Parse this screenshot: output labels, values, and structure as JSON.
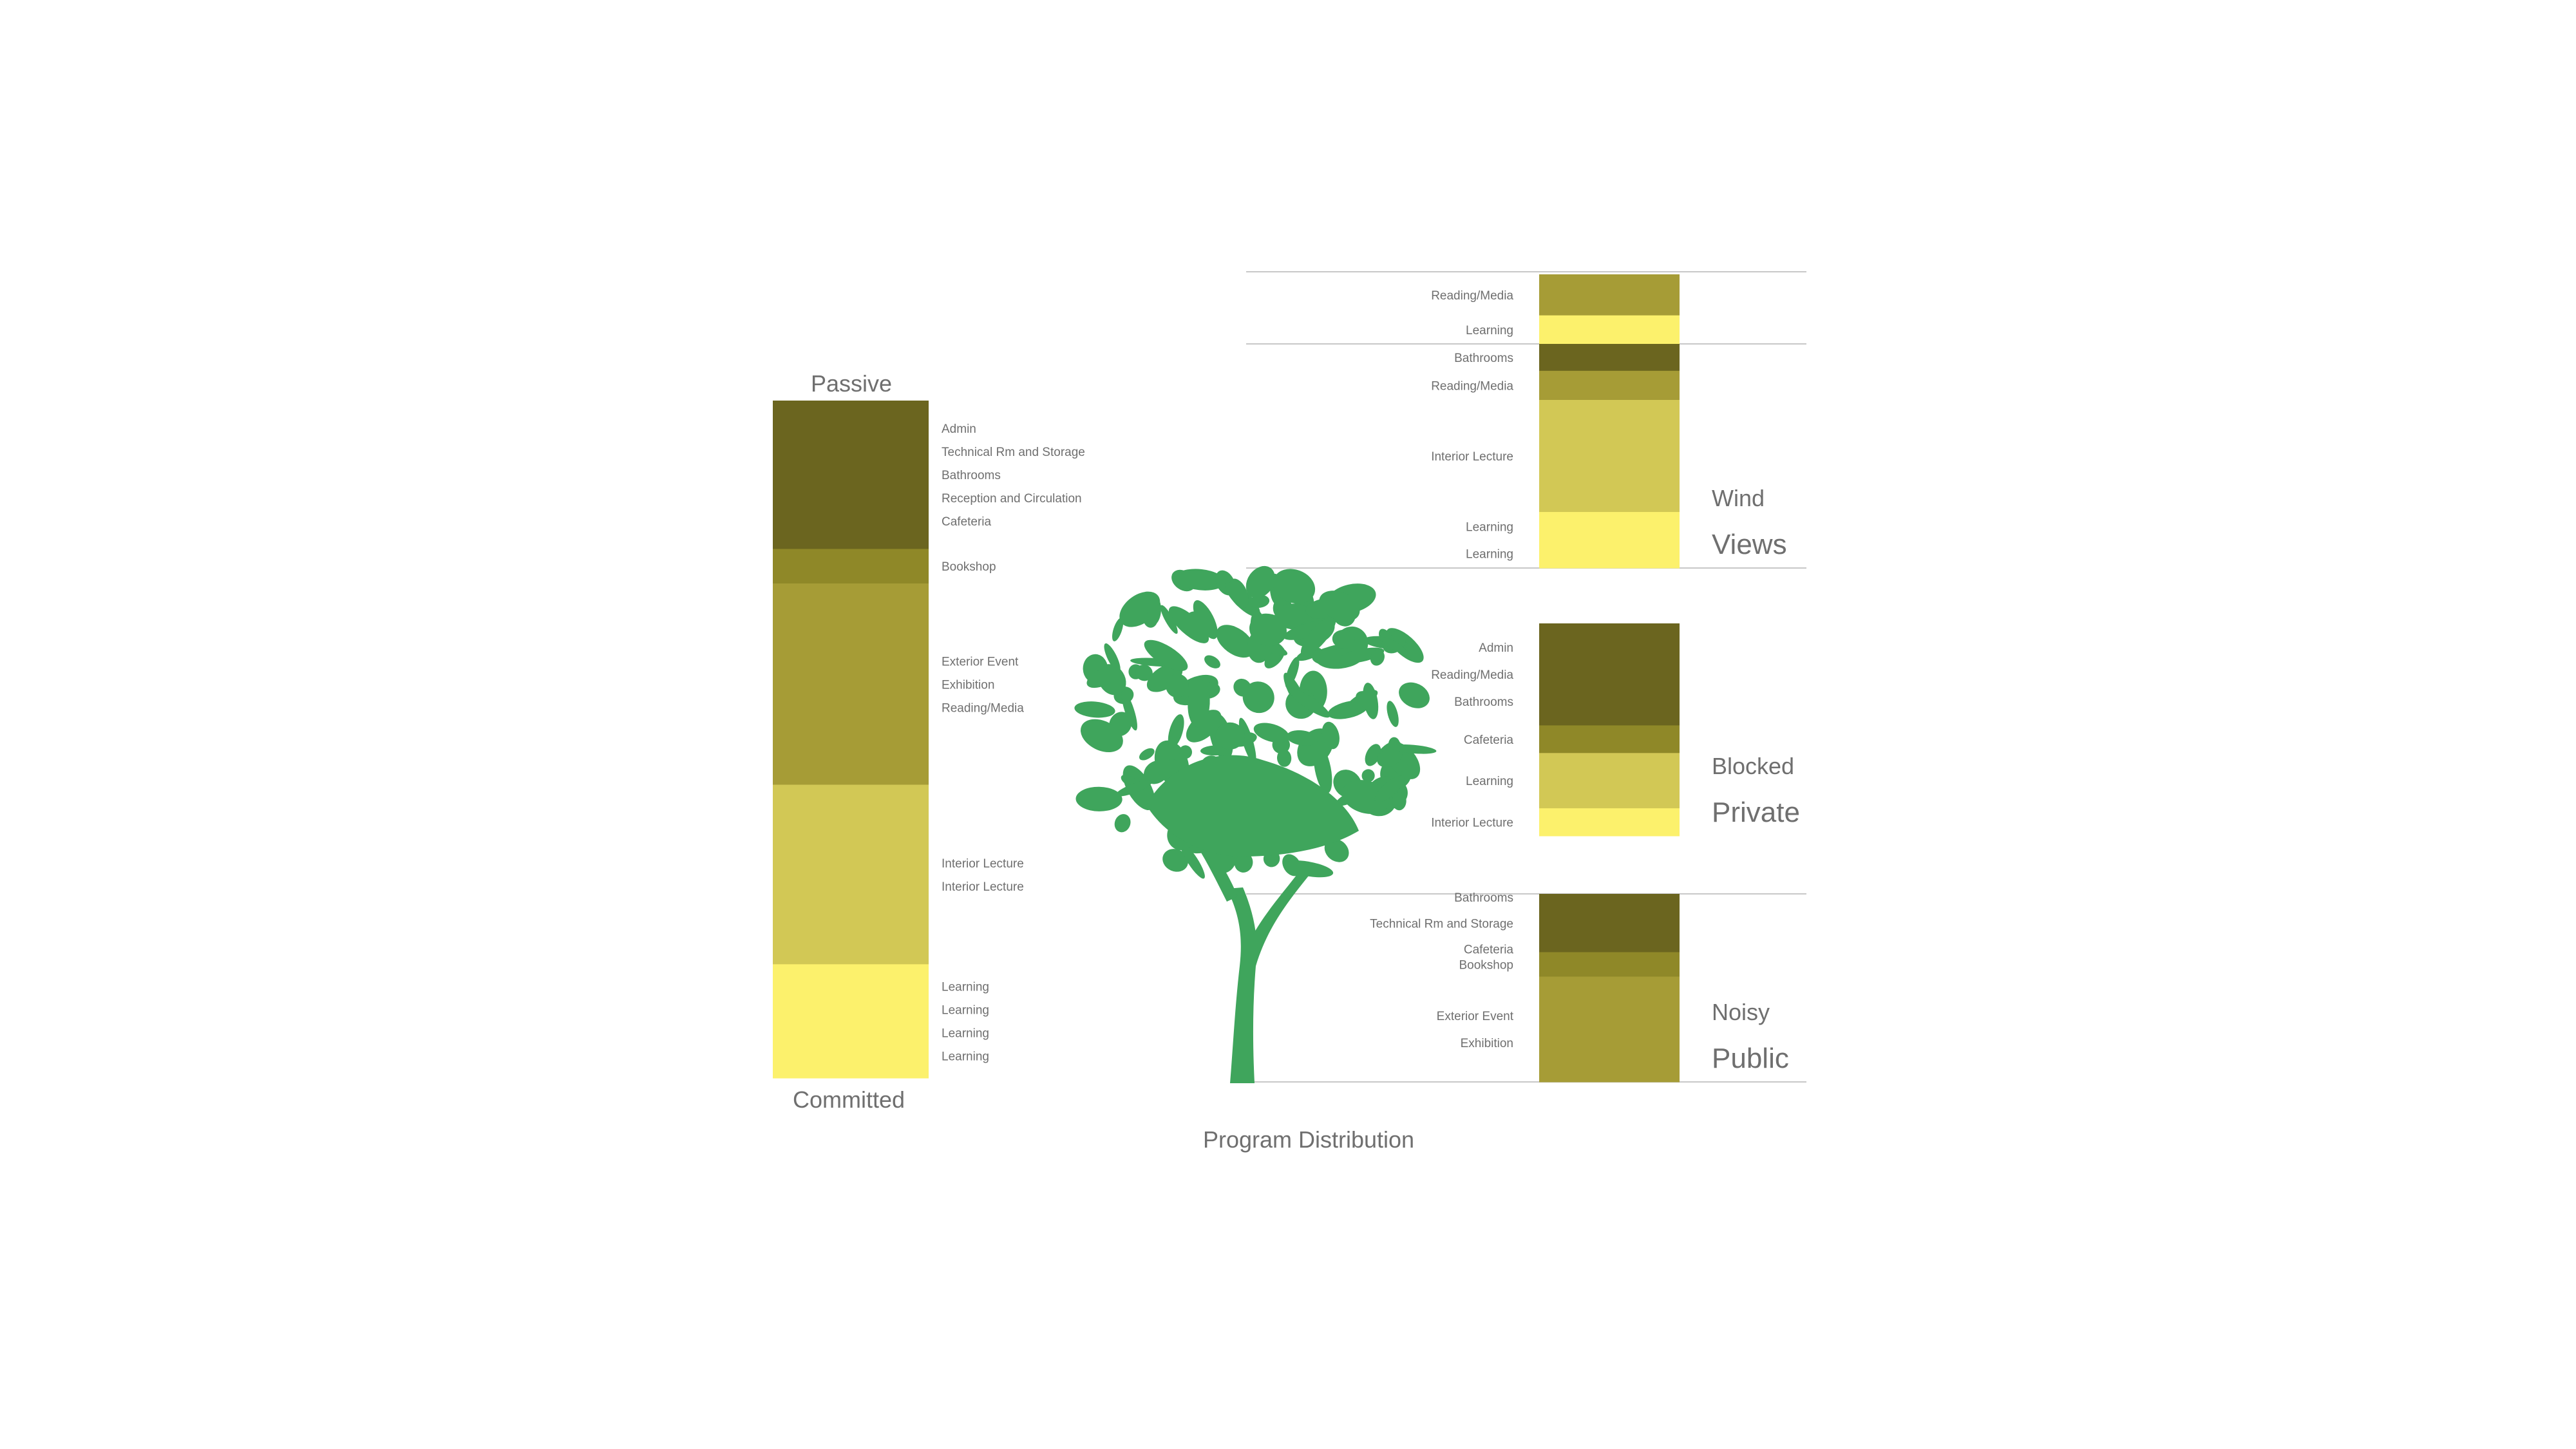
{
  "colors": {
    "dark_olive": "#6B651F",
    "olive": "#8F8828",
    "mid_olive": "#A69C36",
    "light_olive": "#D2C855",
    "yellow": "#FCF16C",
    "tree_green": "#3FA55C",
    "rule": "#c8c8c8"
  },
  "icons": {
    "tree": "tree-illustration"
  },
  "diagram_title": "Program Distribution",
  "left_column": {
    "top_label": "Passive",
    "bottom_label": "Committed",
    "segments": [
      {
        "color": "dark_olive",
        "share": 0.219,
        "labels": [
          "Admin",
          "Technical Rm and Storage",
          "Bathrooms",
          "Reception and Circulation",
          "Cafeteria"
        ]
      },
      {
        "color": "olive",
        "share": 0.051,
        "labels": [
          "Bookshop"
        ]
      },
      {
        "color": "mid_olive",
        "share": 0.297,
        "labels": [
          "Exterior Event",
          "Exhibition",
          "Reading/Media"
        ]
      },
      {
        "color": "light_olive",
        "share": 0.265,
        "labels": [
          "Interior Lecture",
          "Interior Lecture"
        ]
      },
      {
        "color": "yellow",
        "share": 0.168,
        "labels": [
          "Learning",
          "Learning",
          "Learning",
          "Learning"
        ]
      }
    ]
  },
  "right_groups": [
    {
      "id": "top",
      "side_labels": [],
      "segments": [
        {
          "color": "mid_olive",
          "share": 0.59,
          "labels": [
            "Reading/Media"
          ]
        },
        {
          "color": "yellow",
          "share": 0.41,
          "labels": [
            "Learning"
          ]
        }
      ]
    },
    {
      "id": "views",
      "side_labels": [
        "Wind",
        "Views"
      ],
      "segments": [
        {
          "color": "dark_olive",
          "share": 0.12,
          "labels": [
            "Bathrooms"
          ]
        },
        {
          "color": "mid_olive",
          "share": 0.13,
          "labels": [
            "Reading/Media"
          ]
        },
        {
          "color": "light_olive",
          "share": 0.5,
          "labels": [
            "Interior Lecture"
          ]
        },
        {
          "color": "yellow",
          "share": 0.25,
          "labels": [
            "Learning",
            "Learning"
          ]
        }
      ]
    },
    {
      "id": "private",
      "side_labels": [
        "Blocked",
        "Private"
      ],
      "segments": [
        {
          "color": "dark_olive",
          "share": 0.48,
          "labels": [
            "Admin",
            "Reading/Media",
            "Bathrooms"
          ]
        },
        {
          "color": "olive",
          "share": 0.13,
          "labels": [
            "Cafeteria"
          ]
        },
        {
          "color": "light_olive",
          "share": 0.26,
          "labels": [
            "Learning"
          ]
        },
        {
          "color": "yellow",
          "share": 0.13,
          "labels": [
            "Interior Lecture"
          ]
        }
      ]
    },
    {
      "id": "public",
      "side_labels": [
        "Noisy",
        "Public"
      ],
      "segments": [
        {
          "color": "dark_olive",
          "share": 0.31,
          "labels": [
            "Bathrooms",
            "Technical Rm and Storage",
            "Cafeteria"
          ]
        },
        {
          "color": "olive",
          "share": 0.13,
          "labels": [
            "Bookshop"
          ]
        },
        {
          "color": "mid_olive",
          "share": 0.56,
          "labels": [
            "Exterior Event",
            "Exhibition"
          ]
        }
      ]
    }
  ]
}
